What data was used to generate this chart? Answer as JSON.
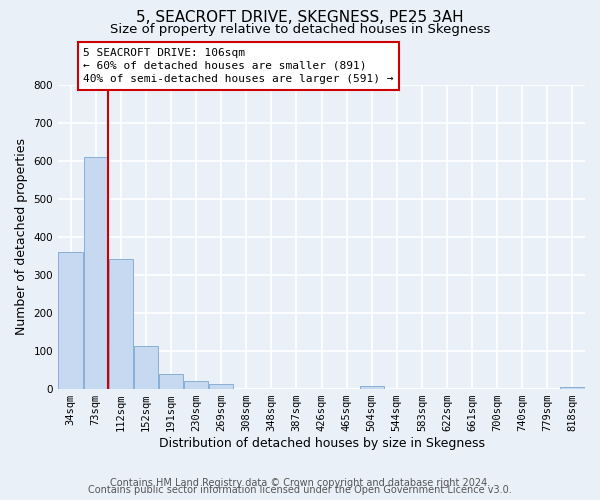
{
  "title": "5, SEACROFT DRIVE, SKEGNESS, PE25 3AH",
  "subtitle": "Size of property relative to detached houses in Skegness",
  "xlabel": "Distribution of detached houses by size in Skegness",
  "ylabel": "Number of detached properties",
  "bin_labels": [
    "34sqm",
    "73sqm",
    "112sqm",
    "152sqm",
    "191sqm",
    "230sqm",
    "269sqm",
    "308sqm",
    "348sqm",
    "387sqm",
    "426sqm",
    "465sqm",
    "504sqm",
    "544sqm",
    "583sqm",
    "622sqm",
    "661sqm",
    "700sqm",
    "740sqm",
    "779sqm",
    "818sqm"
  ],
  "bar_heights": [
    360,
    611,
    342,
    114,
    40,
    21,
    14,
    0,
    0,
    0,
    0,
    0,
    8,
    0,
    0,
    0,
    0,
    0,
    0,
    0,
    5
  ],
  "bar_color": "#c6d9f0",
  "bar_edge_color": "#7ba7d1",
  "vline_color": "#cc0000",
  "annotation_text": "5 SEACROFT DRIVE: 106sqm\n← 60% of detached houses are smaller (891)\n40% of semi-detached houses are larger (591) →",
  "annotation_box_color": "#ffffff",
  "annotation_box_edge_color": "#cc0000",
  "ylim": [
    0,
    800
  ],
  "yticks": [
    0,
    100,
    200,
    300,
    400,
    500,
    600,
    700,
    800
  ],
  "footnote_line1": "Contains HM Land Registry data © Crown copyright and database right 2024.",
  "footnote_line2": "Contains public sector information licensed under the Open Government Licence v3.0.",
  "background_color": "#eaf0f8",
  "plot_background_color": "#eaf0f8",
  "grid_color": "#ffffff",
  "title_fontsize": 11,
  "subtitle_fontsize": 9.5,
  "xlabel_fontsize": 9,
  "ylabel_fontsize": 9,
  "tick_fontsize": 7.5,
  "footnote_fontsize": 7
}
